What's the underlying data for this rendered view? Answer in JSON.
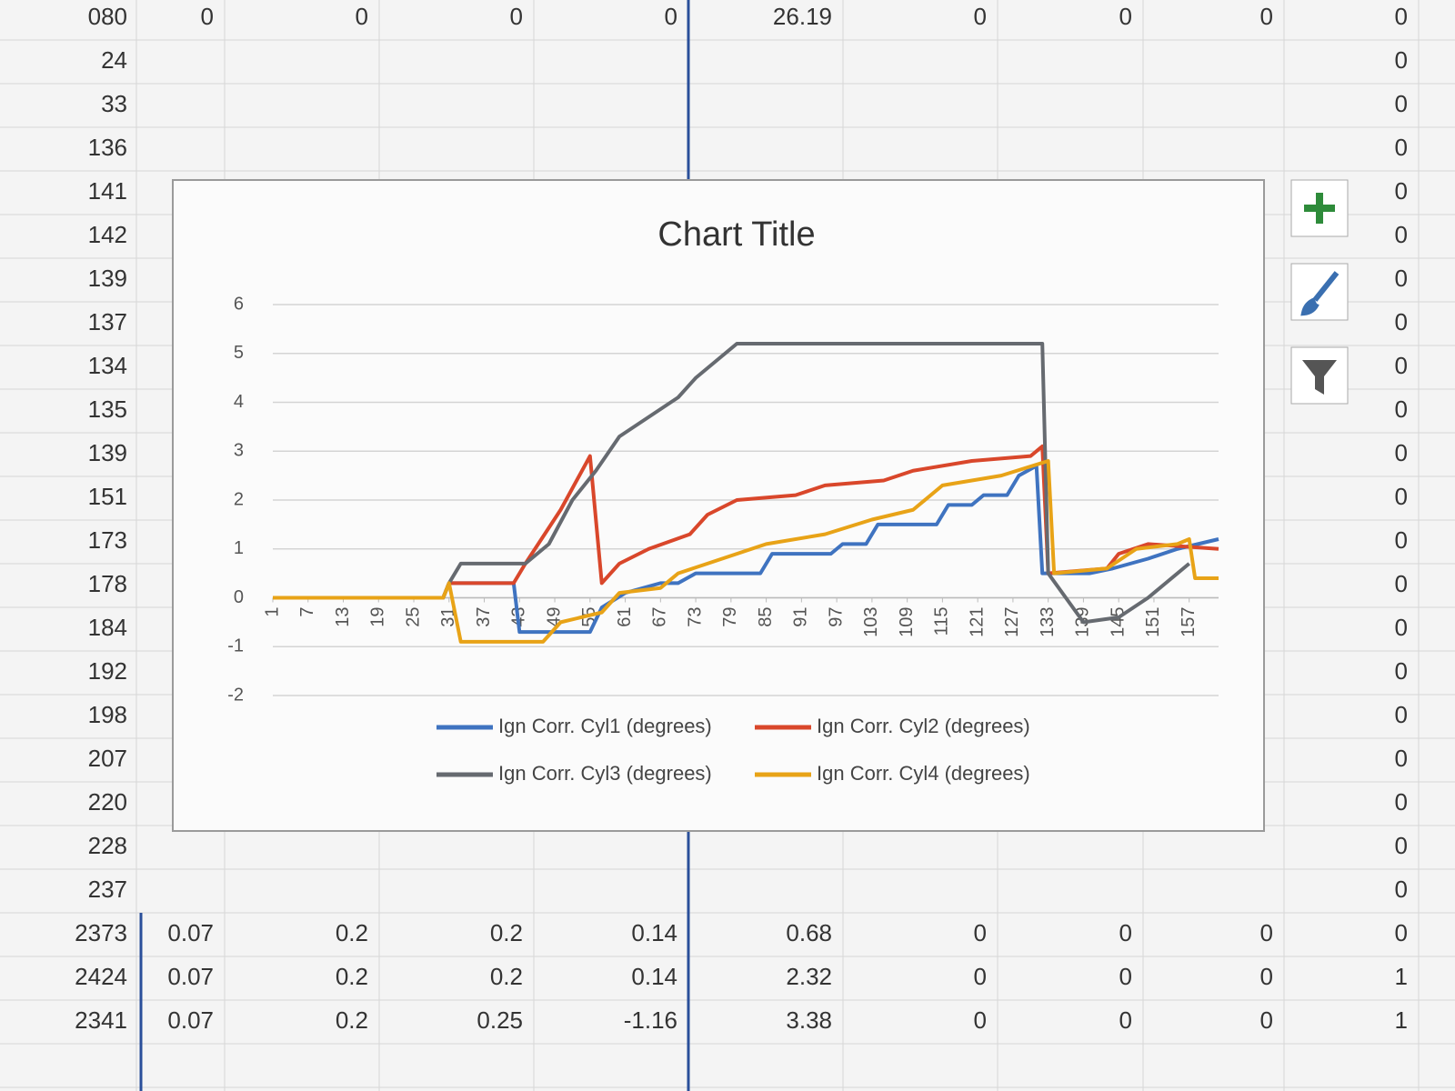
{
  "sheet": {
    "row_labels": [
      "080",
      "24",
      "33",
      "136",
      "141",
      "142",
      "139",
      "137",
      "134",
      "135",
      "139",
      "151",
      "173",
      "178",
      "184",
      "192",
      "198",
      "207",
      "220",
      "228",
      "237",
      "2373",
      "2424",
      "2341"
    ],
    "top_row": [
      "0",
      "0",
      "0",
      "0",
      "26.19",
      "0",
      "0",
      "0",
      "0"
    ],
    "right_column": [
      "0",
      "0",
      "0",
      "0",
      "0",
      "0",
      "0",
      "0",
      "0",
      "0",
      "0",
      "0",
      "0",
      "0",
      "0",
      "0",
      "0",
      "0",
      "0",
      "0"
    ],
    "bottom_rows": [
      [
        "0.07",
        "0.2",
        "0.2",
        "0.14",
        "0.68",
        "0",
        "0",
        "0",
        "0"
      ],
      [
        "0.07",
        "0.2",
        "0.2",
        "0.14",
        "2.32",
        "0",
        "0",
        "0",
        "1"
      ],
      [
        "0.07",
        "0.2",
        "0.25",
        "-1.16",
        "3.38",
        "0",
        "0",
        "0",
        "1"
      ]
    ]
  },
  "chart_data": {
    "type": "line",
    "title": "Chart Title",
    "xlim": [
      1,
      162
    ],
    "xticks": [
      1,
      7,
      13,
      19,
      25,
      31,
      37,
      43,
      49,
      55,
      61,
      67,
      73,
      79,
      85,
      91,
      97,
      103,
      109,
      115,
      121,
      127,
      133,
      139,
      145,
      151,
      157
    ],
    "ylim": [
      -2,
      6
    ],
    "yticks": [
      -2,
      -1,
      0,
      1,
      2,
      3,
      4,
      5,
      6
    ],
    "grid": true,
    "legend": "bottom",
    "series": [
      {
        "name": "Ign Corr. Cyl1 (degrees)",
        "color": "#3f73c0",
        "x": [
          1,
          30,
          31,
          42,
          43,
          55,
          57,
          61,
          67,
          70,
          73,
          84,
          86,
          96,
          98,
          102,
          104,
          114,
          116,
          120,
          122,
          126,
          128,
          131,
          132,
          140,
          144,
          150,
          155,
          162
        ],
        "values": [
          0,
          0,
          0.3,
          0.3,
          -0.7,
          -0.7,
          -0.2,
          0.1,
          0.3,
          0.3,
          0.5,
          0.5,
          0.9,
          0.9,
          1.1,
          1.1,
          1.5,
          1.5,
          1.9,
          1.9,
          2.1,
          2.1,
          2.5,
          2.7,
          0.5,
          0.5,
          0.6,
          0.8,
          1.0,
          1.2
        ]
      },
      {
        "name": "Ign Corr. Cyl2 (degrees)",
        "color": "#d9472b",
        "x": [
          1,
          30,
          31,
          42,
          44,
          50,
          55,
          57,
          60,
          65,
          72,
          75,
          80,
          90,
          95,
          105,
          110,
          120,
          130,
          132,
          133,
          143,
          145,
          150,
          162
        ],
        "values": [
          0,
          0,
          0.3,
          0.3,
          0.7,
          1.8,
          2.9,
          0.3,
          0.7,
          1.0,
          1.3,
          1.7,
          2.0,
          2.1,
          2.3,
          2.4,
          2.6,
          2.8,
          2.9,
          3.1,
          0.5,
          0.6,
          0.9,
          1.1,
          1.0
        ]
      },
      {
        "name": "Ign Corr. Cyl3 (degrees)",
        "color": "#666a70",
        "x": [
          1,
          30,
          31,
          33,
          44,
          48,
          52,
          56,
          60,
          65,
          70,
          73,
          78,
          80,
          132,
          133,
          139,
          145,
          150,
          153,
          157
        ],
        "values": [
          0,
          0,
          0.3,
          0.7,
          0.7,
          1.1,
          2.0,
          2.6,
          3.3,
          3.7,
          4.1,
          4.5,
          5.0,
          5.2,
          5.2,
          0.5,
          -0.5,
          -0.4,
          0,
          0.3,
          0.7
        ]
      },
      {
        "name": "Ign Corr. Cyl4 (degrees)",
        "color": "#e8a317",
        "x": [
          1,
          30,
          31,
          33,
          47,
          50,
          57,
          60,
          67,
          70,
          75,
          85,
          95,
          103,
          110,
          115,
          125,
          133,
          134,
          143,
          148,
          155,
          157,
          158,
          162
        ],
        "values": [
          0,
          0,
          0.3,
          -0.9,
          -0.9,
          -0.5,
          -0.3,
          0.1,
          0.2,
          0.5,
          0.7,
          1.1,
          1.3,
          1.6,
          1.8,
          2.3,
          2.5,
          2.8,
          0.5,
          0.6,
          1.0,
          1.1,
          1.2,
          0.4,
          0.4
        ]
      }
    ]
  }
}
